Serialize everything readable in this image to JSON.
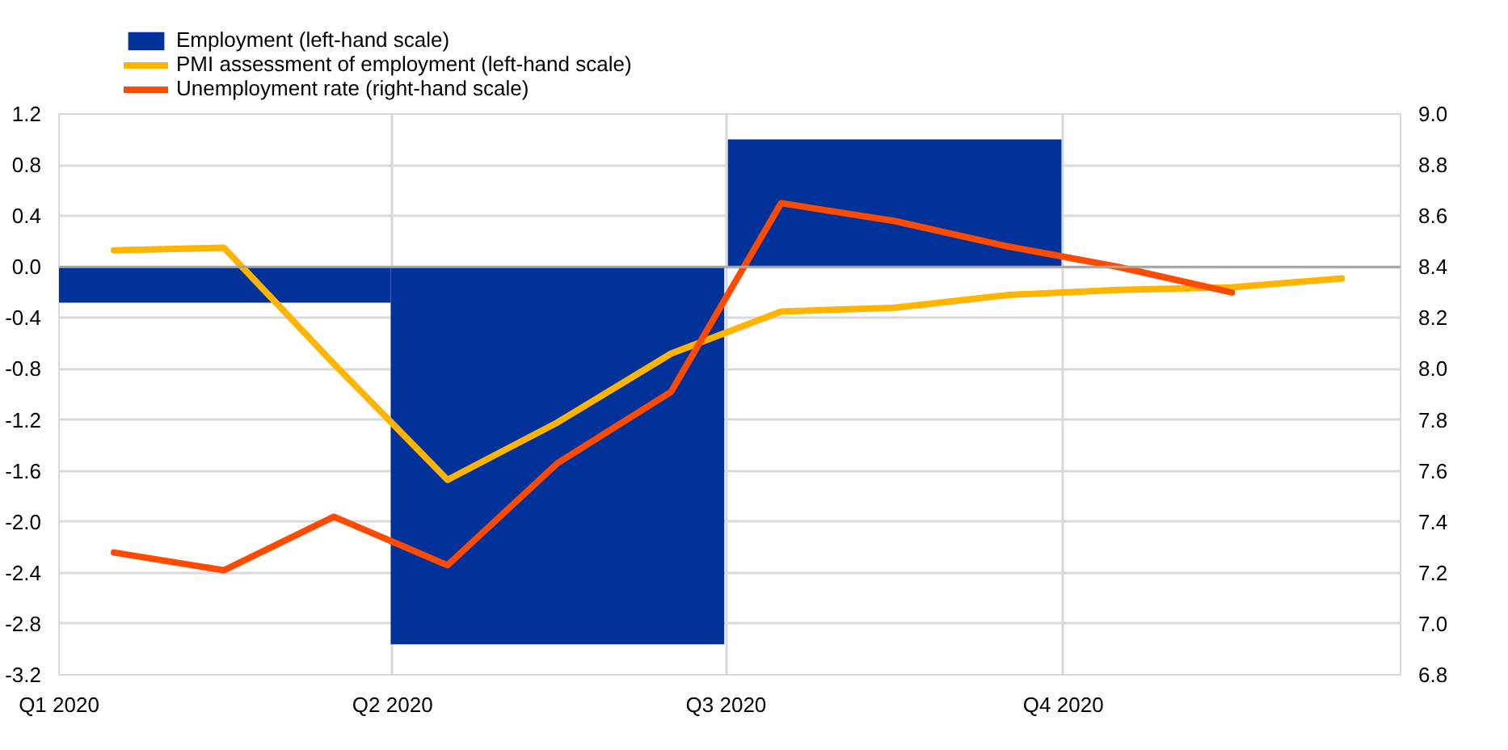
{
  "chart_data": {
    "type": "bar",
    "xlim": [
      "2020-01-01",
      "2021-01-01"
    ],
    "xticks": [
      {
        "value": "2020-01-01",
        "label": "Q1 2020"
      },
      {
        "value": "2020-04-01",
        "label": "Q2 2020"
      },
      {
        "value": "2020-07-01",
        "label": "Q3 2020"
      },
      {
        "value": "2020-10-01",
        "label": "Q4 2020"
      }
    ],
    "ylim": [
      -3.2,
      1.2
    ],
    "yticks": [
      -3.2,
      -2.8,
      -2.4,
      {
        "value": -2,
        "label": "-2.0"
      },
      -1.6,
      -1.2,
      -0.8,
      -0.4,
      {
        "value": 0,
        "label": "0.0"
      },
      0.4,
      0.8,
      1.2
    ],
    "y2lim": [
      6.8,
      9.0
    ],
    "y2ticks": [
      6.8,
      {
        "value": 7,
        "label": "7.0"
      },
      7.2,
      7.4,
      7.6,
      7.8,
      {
        "value": 8,
        "label": "8.0"
      },
      8.2,
      8.4,
      8.6,
      8.8,
      {
        "value": 9,
        "label": "9.0"
      }
    ],
    "series": [
      {
        "name": "Employment (left-hand scale)",
        "color": "#003299",
        "x": [
          "2020-02-15",
          "2020-05-16",
          "2020-08-16"
        ],
        "values": [
          -0.28,
          -2.96,
          1.0
        ]
      },
      {
        "name": "PMI assessment of employment (left-hand scale)",
        "type": "line",
        "color": "#ffb400",
        "x": [
          "2020-01-16",
          "2020-02-15",
          "2020-03-16",
          "2020-04-16",
          "2020-05-16",
          "2020-06-16",
          "2020-07-16",
          "2020-08-16",
          "2020-09-16",
          "2020-10-16",
          "2020-11-16",
          "2020-12-16"
        ],
        "values": [
          0.13,
          0.15,
          -0.76,
          -1.67,
          -1.22,
          -0.68,
          -0.35,
          -0.32,
          -0.22,
          -0.18,
          -0.16,
          -0.09
        ]
      },
      {
        "name": "Unemployment rate (right-hand scale)",
        "type": "line",
        "color": "#ff4b00",
        "axis": "y2",
        "x": [
          "2020-01-16",
          "2020-02-15",
          "2020-03-16",
          "2020-04-16",
          "2020-05-16",
          "2020-06-16",
          "2020-07-16",
          "2020-08-16",
          "2020-09-16",
          "2020-10-16",
          "2020-11-16"
        ],
        "values": [
          7.28,
          7.21,
          7.42,
          7.23,
          7.63,
          7.91,
          8.65,
          8.58,
          8.48,
          8.4,
          8.3
        ]
      }
    ],
    "ref_lines": [
      {
        "axis": "y",
        "value": 0,
        "color": "#a6a6a6"
      }
    ],
    "grid": true,
    "legend": "top left"
  }
}
